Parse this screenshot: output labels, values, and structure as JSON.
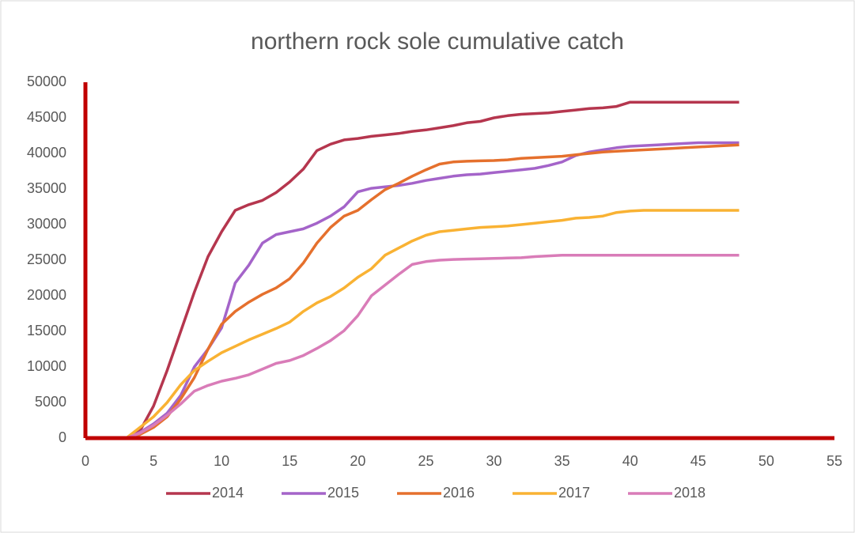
{
  "chart_data": {
    "type": "line",
    "title": "northern rock sole cumulative catch",
    "x": [
      1,
      2,
      3,
      4,
      5,
      6,
      7,
      8,
      9,
      10,
      11,
      12,
      13,
      14,
      15,
      16,
      17,
      18,
      19,
      20,
      21,
      22,
      23,
      24,
      25,
      26,
      27,
      28,
      29,
      30,
      31,
      32,
      33,
      34,
      35,
      36,
      37,
      38,
      39,
      40,
      41,
      42,
      43,
      44,
      45,
      46,
      47,
      48
    ],
    "series": [
      {
        "name": "2014",
        "color": "#b5364e",
        "values": [
          0,
          0,
          0,
          1000,
          4500,
          9500,
          15000,
          20500,
          25500,
          29000,
          32000,
          32800,
          33400,
          34500,
          36000,
          37800,
          40400,
          41300,
          41900,
          42100,
          42400,
          42600,
          42800,
          43100,
          43300,
          43600,
          43900,
          44300,
          44500,
          45000,
          45300,
          45500,
          45600,
          45700,
          45900,
          46100,
          46300,
          46400,
          46600,
          47200,
          47200,
          47200,
          47200,
          47200,
          47200,
          47200,
          47200,
          47200
        ]
      },
      {
        "name": "2015",
        "color": "#a464c9",
        "values": [
          0,
          0,
          0,
          800,
          2000,
          3500,
          6000,
          10000,
          12500,
          15500,
          21800,
          24300,
          27400,
          28600,
          29000,
          29400,
          30200,
          31200,
          32500,
          34600,
          35100,
          35300,
          35500,
          35800,
          36200,
          36500,
          36800,
          37000,
          37100,
          37300,
          37500,
          37700,
          37900,
          38300,
          38800,
          39700,
          40200,
          40500,
          40800,
          41000,
          41100,
          41200,
          41300,
          41400,
          41500,
          41500,
          41500,
          41500
        ]
      },
      {
        "name": "2016",
        "color": "#e5702d",
        "values": [
          0,
          0,
          0,
          500,
          1500,
          3000,
          5500,
          8500,
          12500,
          16000,
          17800,
          19100,
          20200,
          21100,
          22400,
          24600,
          27400,
          29600,
          31200,
          32000,
          33500,
          34900,
          35800,
          36800,
          37700,
          38500,
          38800,
          38900,
          38950,
          39000,
          39100,
          39300,
          39400,
          39500,
          39600,
          39800,
          40000,
          40200,
          40300,
          40400,
          40500,
          40600,
          40700,
          40800,
          40900,
          41000,
          41100,
          41200
        ]
      },
      {
        "name": "2017",
        "color": "#f9b233",
        "values": [
          0,
          0,
          0,
          1500,
          3000,
          5000,
          7500,
          9500,
          10800,
          12000,
          12900,
          13800,
          14600,
          15400,
          16300,
          17800,
          19000,
          19900,
          21100,
          22600,
          23800,
          25700,
          26700,
          27700,
          28500,
          29000,
          29200,
          29400,
          29600,
          29700,
          29800,
          30000,
          30200,
          30400,
          30600,
          30900,
          31000,
          31200,
          31700,
          31900,
          32000,
          32000,
          32000,
          32000,
          32000,
          32000,
          32000,
          32000
        ]
      },
      {
        "name": "2018",
        "color": "#d97cb8",
        "values": [
          0,
          0,
          0,
          700,
          1800,
          3200,
          4800,
          6600,
          7400,
          8000,
          8400,
          8900,
          9700,
          10500,
          10900,
          11600,
          12600,
          13700,
          15100,
          17200,
          20000,
          21500,
          23000,
          24400,
          24800,
          25000,
          25100,
          25150,
          25200,
          25250,
          25300,
          25350,
          25500,
          25600,
          25700,
          25700,
          25700,
          25700,
          25700,
          25700,
          25700,
          25700,
          25700,
          25700,
          25700,
          25700,
          25700,
          25700
        ]
      }
    ],
    "xlim": [
      0,
      55
    ],
    "xticks": [
      0,
      5,
      10,
      15,
      20,
      25,
      30,
      35,
      40,
      45,
      50,
      55
    ],
    "ylim": [
      0,
      50000
    ],
    "yticks": [
      0,
      5000,
      10000,
      15000,
      20000,
      25000,
      30000,
      35000,
      40000,
      45000,
      50000
    ],
    "axis_color": "#c00000",
    "grid": false,
    "legend": "bottom"
  }
}
